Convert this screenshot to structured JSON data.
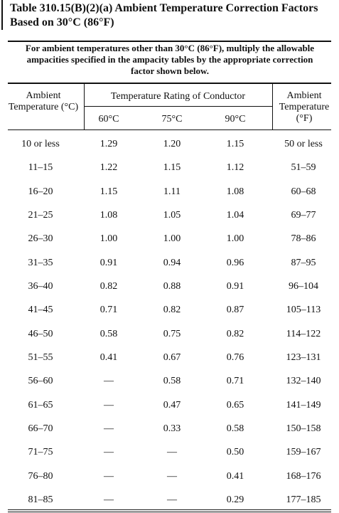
{
  "header": {
    "title": "Table 310.15(B)(2)(a) Ambient Temperature Correction Factors Based on 30°C (86°F)"
  },
  "note": "For ambient temperatures other than 30°C (86°F), multiply the allowable ampacities specified in the ampacity tables by the appropriate correction factor shown below.",
  "table": {
    "columns": {
      "ambient_c": "Ambient Temperature (°C)",
      "rating": "Temperature Rating of Conductor",
      "c60": "60°C",
      "c75": "75°C",
      "c90": "90°C",
      "ambient_f": "Ambient Temperature (°F)"
    },
    "rows": [
      [
        "10 or less",
        "1.29",
        "1.20",
        "1.15",
        "50 or less"
      ],
      [
        "11–15",
        "1.22",
        "1.15",
        "1.12",
        "51–59"
      ],
      [
        "16–20",
        "1.15",
        "1.11",
        "1.08",
        "60–68"
      ],
      [
        "21–25",
        "1.08",
        "1.05",
        "1.04",
        "69–77"
      ],
      [
        "26–30",
        "1.00",
        "1.00",
        "1.00",
        "78–86"
      ],
      [
        "31–35",
        "0.91",
        "0.94",
        "0.96",
        "87–95"
      ],
      [
        "36–40",
        "0.82",
        "0.88",
        "0.91",
        "96–104"
      ],
      [
        "41–45",
        "0.71",
        "0.82",
        "0.87",
        "105–113"
      ],
      [
        "46–50",
        "0.58",
        "0.75",
        "0.82",
        "114–122"
      ],
      [
        "51–55",
        "0.41",
        "0.67",
        "0.76",
        "123–131"
      ],
      [
        "56–60",
        "—",
        "0.58",
        "0.71",
        "132–140"
      ],
      [
        "61–65",
        "—",
        "0.47",
        "0.65",
        "141–149"
      ],
      [
        "66–70",
        "—",
        "0.33",
        "0.58",
        "150–158"
      ],
      [
        "71–75",
        "—",
        "—",
        "0.50",
        "159–167"
      ],
      [
        "76–80",
        "—",
        "—",
        "0.41",
        "168–176"
      ],
      [
        "81–85",
        "—",
        "—",
        "0.29",
        "177–185"
      ]
    ]
  }
}
